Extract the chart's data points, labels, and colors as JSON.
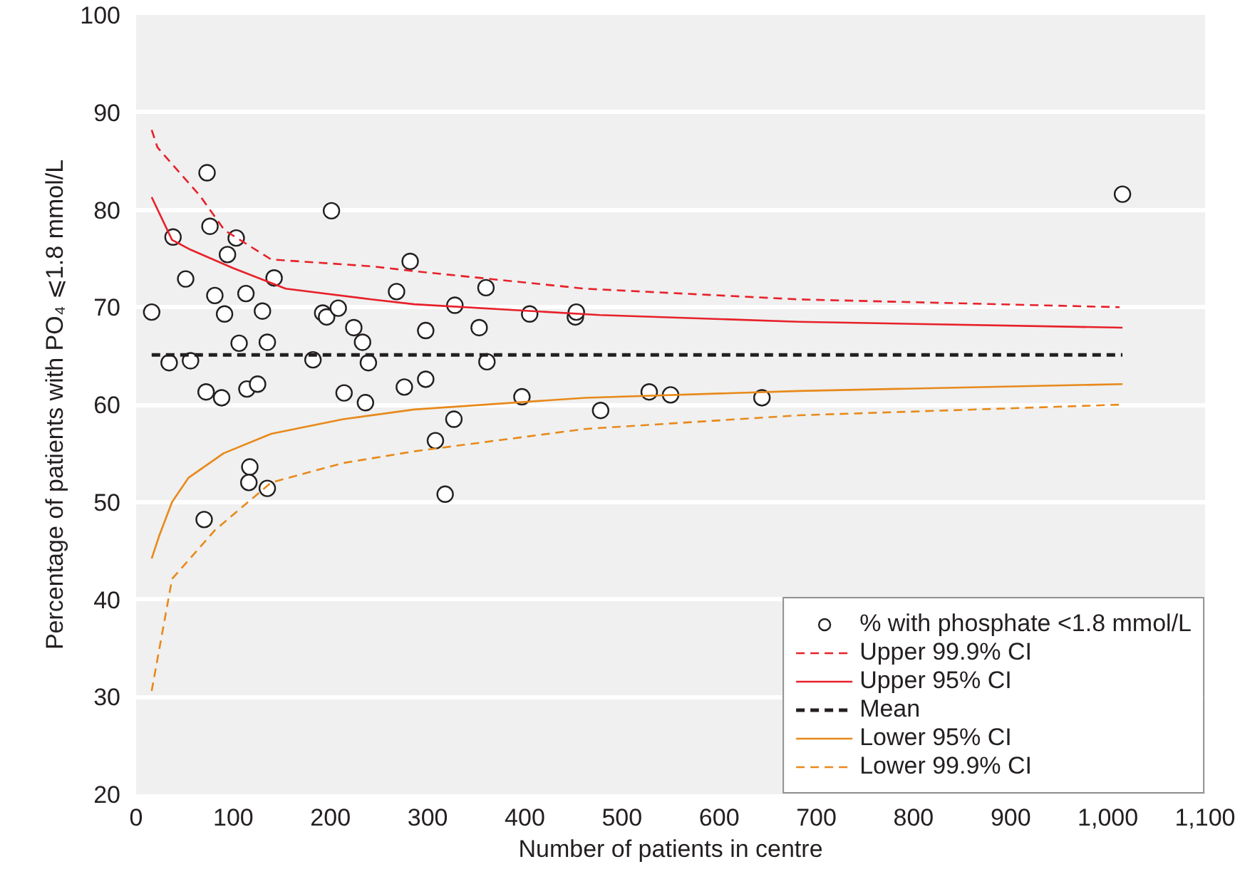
{
  "chart_data": {
    "type": "scatter",
    "xlabel": "Number of patients in centre",
    "ylabel": "Percentage of patients with PO₄ ⩽1.8 mmol/L",
    "xlim": [
      0,
      1100
    ],
    "ylim": [
      20,
      100
    ],
    "xticks": [
      0,
      100,
      200,
      300,
      400,
      500,
      600,
      700,
      800,
      900,
      {
        "value": 1000,
        "label": "1,000"
      },
      {
        "value": 1100,
        "label": "1,100"
      }
    ],
    "yticks": [
      20,
      30,
      40,
      50,
      60,
      70,
      80,
      90,
      100
    ],
    "grid": "y",
    "legend": "bottom right",
    "series": [
      {
        "name": "% with phosphate <1.8 mmol/L",
        "marker": "circle",
        "color": "#231f20",
        "x": [
          16,
          34,
          38,
          51,
          56,
          73,
          72,
          70,
          76,
          81,
          88,
          91,
          94,
          103,
          106,
          113,
          114,
          117,
          116,
          125,
          130,
          135,
          135,
          142,
          182,
          192,
          196,
          201,
          208,
          214,
          224,
          233,
          236,
          239,
          268,
          276,
          282,
          298,
          298,
          308,
          318,
          327,
          328,
          353,
          360,
          361,
          397,
          405,
          452,
          453,
          478,
          528,
          550,
          644,
          1015
        ],
        "values": [
          69.5,
          64.3,
          77.2,
          72.9,
          64.5,
          83.8,
          61.3,
          48.2,
          78.3,
          71.2,
          60.7,
          69.3,
          75.4,
          77.1,
          66.3,
          71.4,
          61.6,
          53.6,
          52.0,
          62.1,
          69.6,
          66.4,
          51.4,
          73.0,
          64.6,
          69.4,
          69.0,
          79.9,
          69.9,
          61.2,
          67.9,
          66.4,
          60.2,
          64.3,
          71.6,
          61.8,
          74.7,
          67.6,
          62.6,
          56.3,
          50.8,
          58.5,
          70.2,
          67.9,
          72.0,
          64.4,
          60.8,
          69.3,
          69.0,
          69.5,
          59.4,
          61.3,
          61.0,
          60.7,
          81.6
        ]
      },
      {
        "name": "Upper 99.9% CI",
        "type": "line",
        "line_style": "dashed",
        "color": "#e8202a",
        "x": [
          16,
          22,
          66,
          91,
          139,
          242,
          286,
          462,
          682,
          1012
        ],
        "values": [
          88.2,
          86.4,
          81.4,
          77.9,
          74.9,
          74.2,
          73.7,
          71.9,
          70.8,
          70.0
        ]
      },
      {
        "name": "Upper 95% CI",
        "type": "line",
        "line_style": "solid",
        "color": "#e8202a",
        "x": [
          16,
          37,
          56,
          100,
          154,
          242,
          286,
          477,
          682,
          1015
        ],
        "values": [
          81.3,
          76.9,
          75.9,
          74.0,
          71.9,
          70.8,
          70.3,
          69.2,
          68.5,
          67.9
        ]
      },
      {
        "name": "Mean",
        "type": "line",
        "line_style": "dashed",
        "color": "#231f20",
        "x": [
          16,
          1015
        ],
        "values": [
          65.1,
          65.1
        ]
      },
      {
        "name": "Lower 95% CI",
        "type": "line",
        "line_style": "solid",
        "color": "#e8891a",
        "x": [
          16,
          24,
          37,
          54,
          90,
          139,
          213,
          286,
          462,
          682,
          1015
        ],
        "values": [
          44.2,
          46.6,
          50.0,
          52.5,
          55.0,
          57.0,
          58.5,
          59.5,
          60.7,
          61.4,
          62.1
        ]
      },
      {
        "name": "Lower 99.9% CI",
        "type": "line",
        "line_style": "dashed",
        "color": "#e8891a",
        "x": [
          16,
          37,
          81,
          139,
          213,
          286,
          462,
          682,
          1015
        ],
        "values": [
          30.6,
          42.1,
          47.1,
          52.0,
          54.0,
          55.2,
          57.5,
          58.9,
          60.0
        ]
      }
    ]
  }
}
